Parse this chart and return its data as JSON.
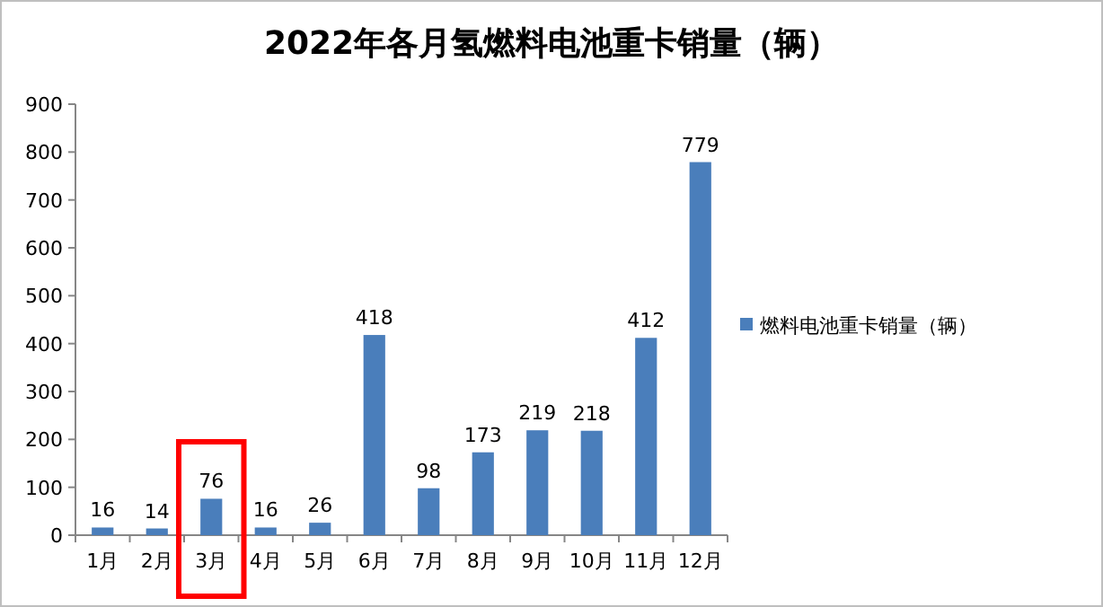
{
  "chart_data": {
    "type": "bar",
    "title": "2022年各月氢燃料电池重卡销量（辆）",
    "categories": [
      "1月",
      "2月",
      "3月",
      "4月",
      "5月",
      "6月",
      "7月",
      "8月",
      "9月",
      "10月",
      "11月",
      "12月"
    ],
    "series": [
      {
        "name": "燃料电池重卡销量（辆）",
        "color": "#4a7ebb",
        "values": [
          16,
          14,
          76,
          16,
          26,
          418,
          98,
          173,
          219,
          218,
          412,
          779
        ]
      }
    ],
    "ylim": [
      0,
      900
    ],
    "yticks": [
      0,
      100,
      200,
      300,
      400,
      500,
      600,
      700,
      800,
      900
    ],
    "data_labels": true,
    "legend": "right",
    "grid": false
  }
}
